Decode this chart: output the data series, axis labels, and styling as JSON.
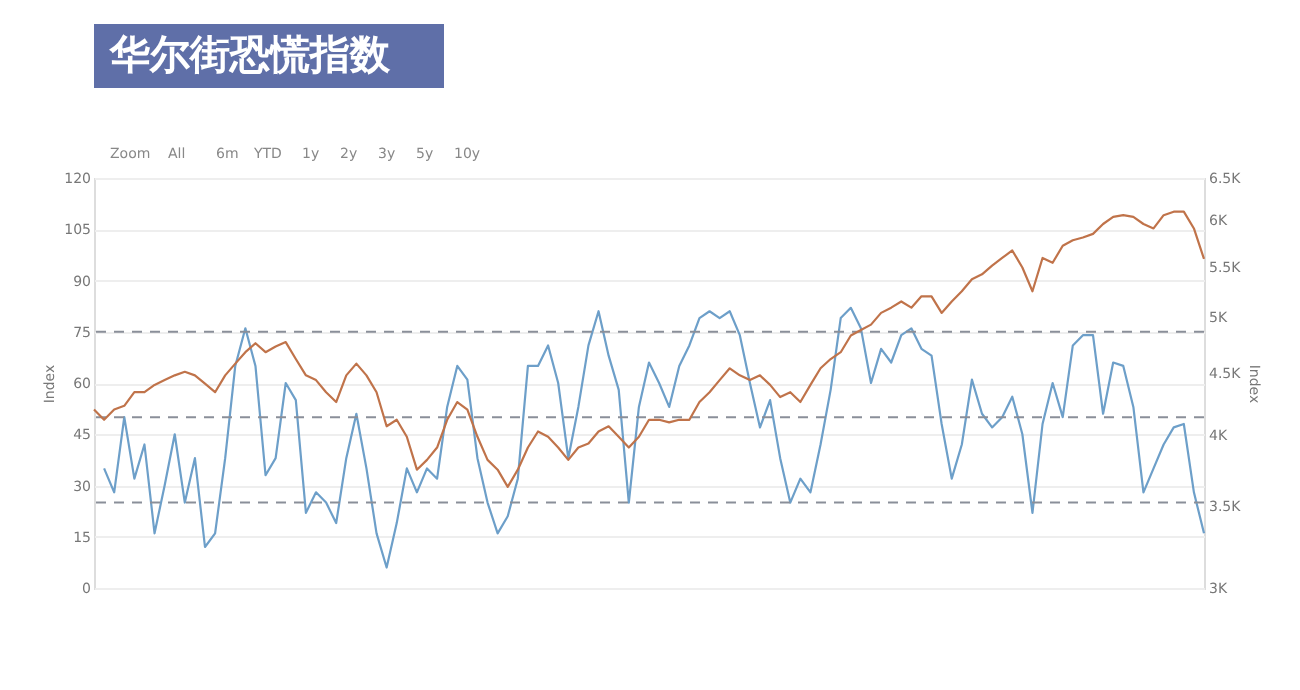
{
  "chart_data": {
    "type": "line",
    "title": "华尔街恐慌指数",
    "annotations": [
      "Zoom",
      "All",
      "6m",
      "YTD",
      "1y",
      "2y",
      "3y",
      "5y",
      "10y"
    ],
    "categories": [
      null,
      null,
      null,
      null,
      null,
      null,
      null,
      null,
      null,
      null,
      null,
      null,
      null,
      null,
      null,
      null,
      null,
      null,
      null,
      null,
      null,
      null,
      null,
      null,
      null,
      null,
      null,
      null,
      null,
      null,
      null,
      null,
      null,
      null,
      null,
      null,
      null,
      null,
      null,
      null,
      null,
      null,
      null,
      null,
      null,
      null,
      null,
      null,
      null,
      null,
      null,
      null,
      null,
      null,
      null,
      null,
      null,
      null,
      null,
      null,
      null,
      null,
      null,
      null,
      null,
      null,
      null,
      null,
      null,
      null,
      null,
      null,
      null,
      null,
      null,
      null,
      null,
      null,
      null,
      null,
      null,
      null,
      null,
      null,
      null,
      null,
      null,
      null,
      null,
      null,
      null,
      null,
      null,
      null,
      null,
      null,
      null,
      null,
      null,
      null,
      null,
      null,
      null,
      null,
      null,
      null,
      null,
      null,
      null,
      null,
      null
    ],
    "series": [
      {
        "type": "line",
        "color": "#c0734a",
        "axis": "y2",
        "values": [
          4200,
          4120,
          4200,
          4230,
          4340,
          4340,
          4400,
          4440,
          4480,
          4510,
          4480,
          4410,
          4340,
          4480,
          4580,
          4680,
          4760,
          4680,
          4730,
          4770,
          4620,
          4480,
          4440,
          4340,
          4260,
          4480,
          4580,
          4480,
          4340,
          4070,
          4120,
          3990,
          3750,
          3820,
          3910,
          4120,
          4260,
          4200,
          3990,
          3820,
          3750,
          3630,
          3750,
          3910,
          4030,
          3990,
          3910,
          3820,
          3910,
          3940,
          4030,
          4070,
          3990,
          3910,
          3990,
          4120,
          4120,
          4100,
          4120,
          4120,
          4260,
          4340,
          4440,
          4540,
          4480,
          4440,
          4480,
          4400,
          4300,
          4340,
          4260,
          4400,
          4540,
          4620,
          4680,
          4830,
          4880,
          4930,
          5040,
          5090,
          5150,
          5090,
          5200,
          5200,
          5040,
          5150,
          5250,
          5370,
          5420,
          5510,
          5590,
          5670,
          5490,
          5250,
          5590,
          5540,
          5720,
          5780,
          5810,
          5850,
          5960,
          6040,
          6060,
          6040,
          5960,
          5910,
          6060,
          6100,
          6100,
          5910,
          5580
        ]
      },
      {
        "type": "line",
        "color": "#6d9fc9",
        "values": [
          null,
          35,
          28,
          50,
          32,
          42,
          16,
          30,
          45,
          25,
          38,
          12,
          16,
          38,
          65,
          76,
          65,
          33,
          38,
          60,
          55,
          22,
          28,
          25,
          19,
          38,
          51,
          35,
          16,
          6,
          19,
          35,
          28,
          35,
          32,
          53,
          65,
          61,
          38,
          25,
          16,
          21,
          32,
          65,
          65,
          71,
          60,
          38,
          53,
          71,
          81,
          68,
          58,
          25,
          53,
          66,
          60,
          53,
          65,
          71,
          79,
          81,
          79,
          81,
          74,
          60,
          47,
          55,
          38,
          25,
          32,
          28,
          42,
          58,
          79,
          82,
          76,
          60,
          70,
          66,
          74,
          76,
          70,
          68,
          48,
          32,
          42,
          61,
          51,
          47,
          50,
          56,
          45,
          22,
          48,
          60,
          50,
          71,
          74,
          74,
          51,
          66,
          65,
          53,
          28,
          35,
          42,
          47,
          48,
          28,
          16
        ]
      }
    ],
    "ylabel": "Index",
    "y2label": "Index",
    "ylim": [
      0,
      120
    ],
    "yticks": [
      0,
      15,
      30,
      45,
      60,
      75,
      90,
      105,
      120
    ],
    "y2lim": [
      3000,
      6500
    ],
    "log": "y2",
    "y2ticks": [
      {
        "value": 3000,
        "label": "3K"
      },
      {
        "value": 3500,
        "label": "3.5K"
      },
      {
        "value": 4000,
        "label": "4K"
      },
      {
        "value": 4500,
        "label": "4.5K"
      },
      {
        "value": 5000,
        "label": "5K"
      },
      {
        "value": 5500,
        "label": "5.5K"
      },
      {
        "value": 6000,
        "label": "6K"
      },
      {
        "value": 6500,
        "label": "6.5K"
      }
    ],
    "grid": "y",
    "ref_lines": [
      {
        "axis": "y",
        "value": 75,
        "color": "#8a8f99",
        "line_style": "dashed"
      },
      {
        "axis": "y",
        "value": 50,
        "color": "#8a8f99",
        "line_style": "dashed"
      },
      {
        "axis": "y",
        "value": 25,
        "color": "#8a8f99",
        "line_style": "dashed"
      }
    ]
  }
}
